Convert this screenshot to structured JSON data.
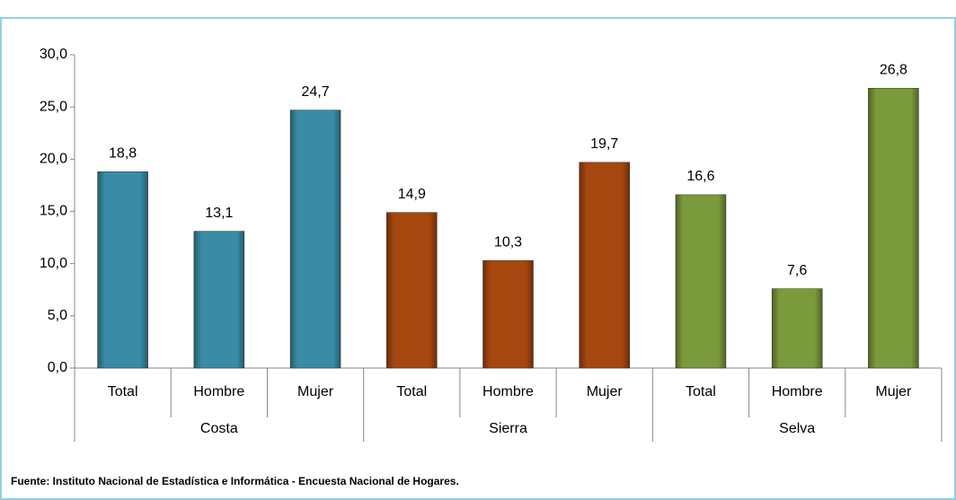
{
  "chart_data": {
    "type": "bar",
    "groups": [
      {
        "name": "Costa",
        "color": "#3a8ca6",
        "categories": [
          "Total",
          "Hombre",
          "Mujer"
        ],
        "values": [
          18.8,
          13.1,
          24.7
        ],
        "value_labels": [
          "18,8",
          "13,1",
          "24,7"
        ]
      },
      {
        "name": "Sierra",
        "color": "#a5470f",
        "categories": [
          "Total",
          "Hombre",
          "Mujer"
        ],
        "values": [
          14.9,
          10.3,
          19.7
        ],
        "value_labels": [
          "14,9",
          "10,3",
          "19,7"
        ]
      },
      {
        "name": "Selva",
        "color": "#7b9a3c",
        "categories": [
          "Total",
          "Hombre",
          "Mujer"
        ],
        "values": [
          16.6,
          7.6,
          26.8
        ],
        "value_labels": [
          "16,6",
          "7,6",
          "26,8"
        ]
      }
    ],
    "ylim": [
      0,
      30
    ],
    "yticks": [
      {
        "value": 0,
        "label": "0,0"
      },
      {
        "value": 5,
        "label": "5,0"
      },
      {
        "value": 10,
        "label": "10,0"
      },
      {
        "value": 15,
        "label": "15,0"
      },
      {
        "value": 20,
        "label": "20,0"
      },
      {
        "value": 25,
        "label": "25,0"
      },
      {
        "value": 30,
        "label": "30,0"
      }
    ],
    "source": "Fuente: Instituto Nacional de Estadística e Informática - Encuesta Nacional de Hogares."
  }
}
